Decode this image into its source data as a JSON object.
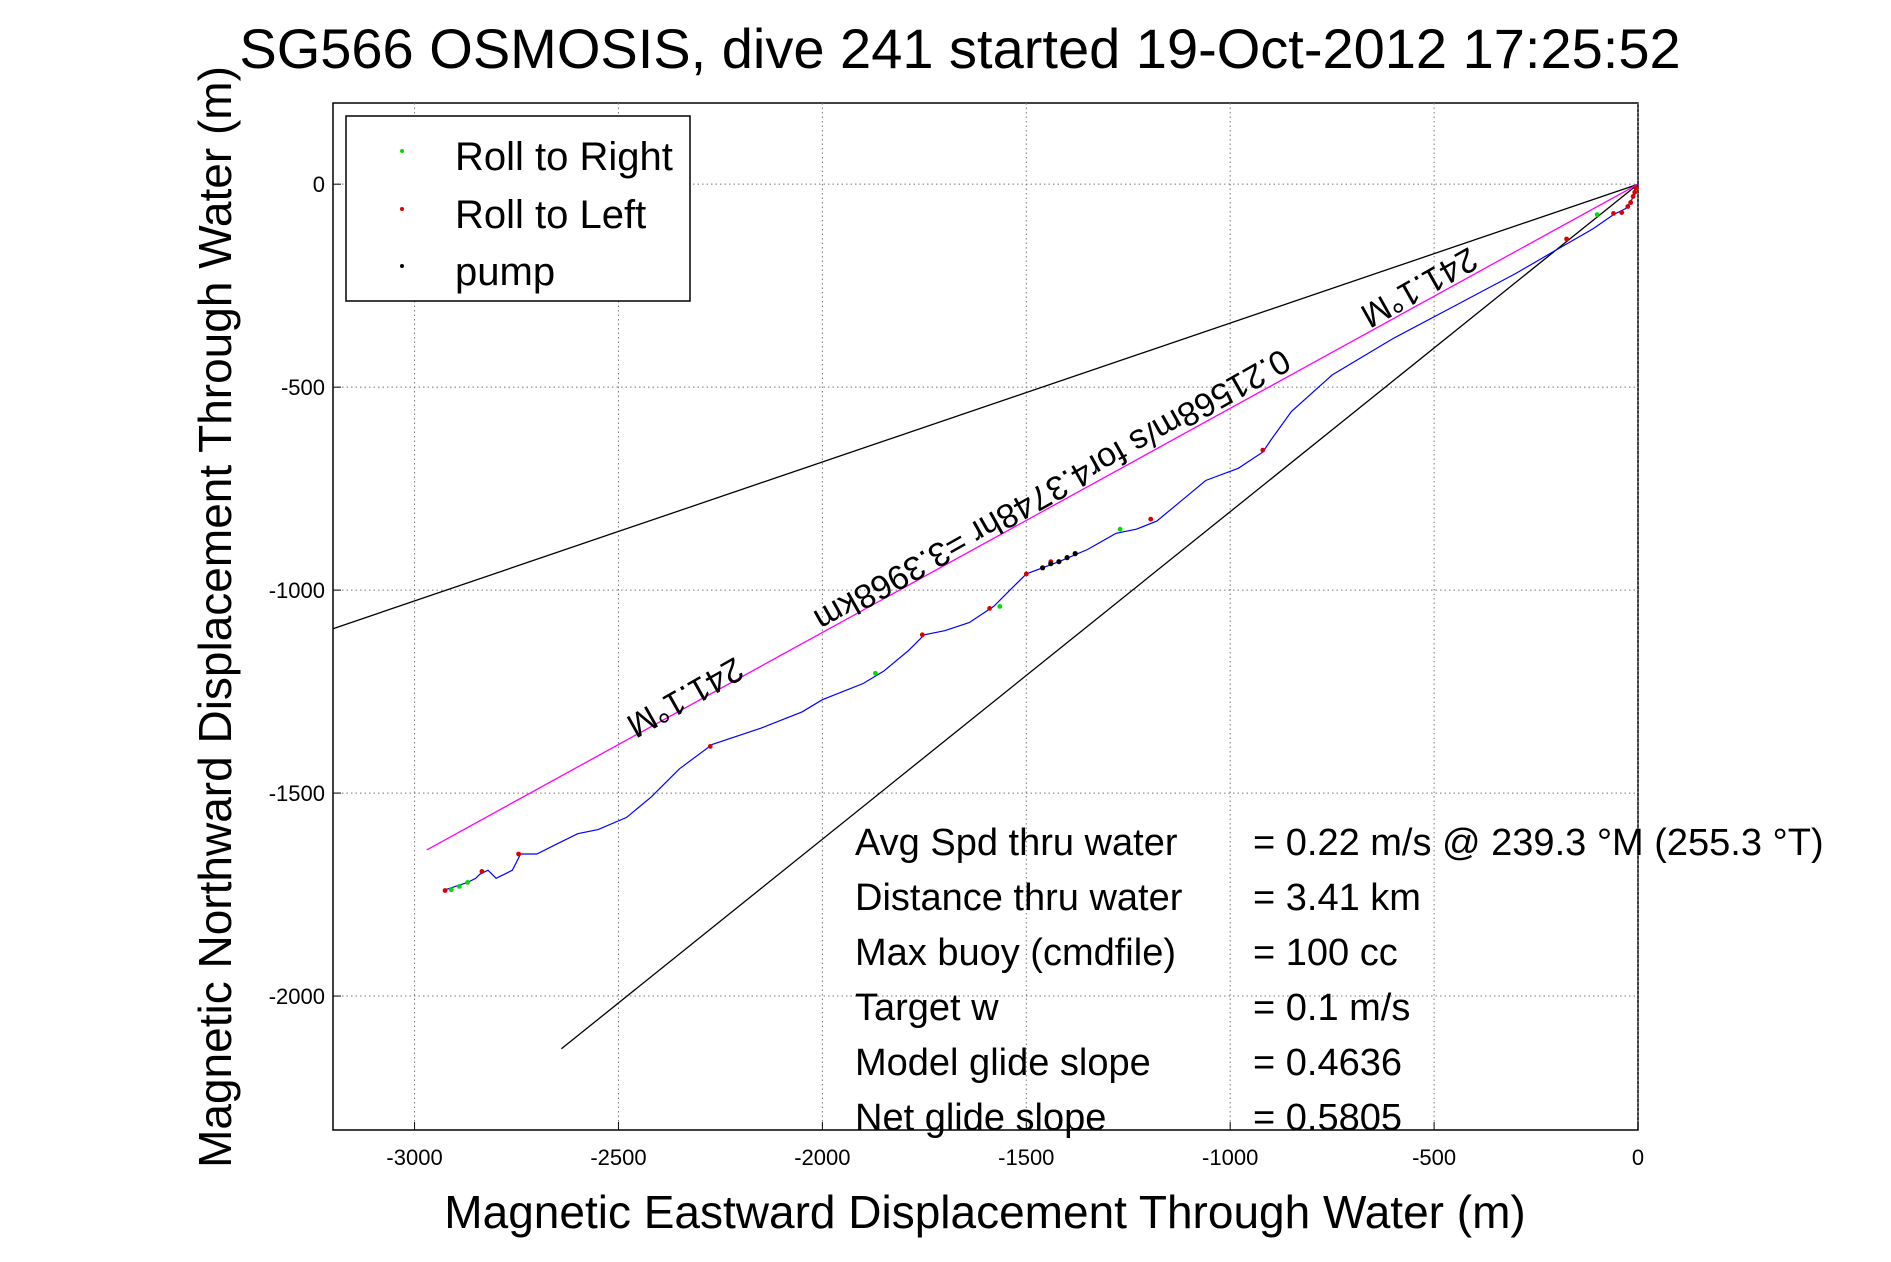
{
  "chart_data": {
    "type": "line",
    "title": "SG566 OSMOSIS, dive 241 started 19-Oct-2012 17:25:52",
    "xlabel": "Magnetic Eastward Displacement Through Water (m)",
    "ylabel": "Magnetic Northward Displacement Through Water (m)",
    "xlim": [
      -3200,
      0
    ],
    "ylim": [
      -2330,
      200
    ],
    "xticks": [
      -3000,
      -2500,
      -2000,
      -1500,
      -1000,
      -500,
      0
    ],
    "yticks": [
      0,
      -500,
      -1000,
      -1500,
      -2000
    ],
    "grid": true,
    "legend": {
      "position": "top-left",
      "entries": [
        {
          "label": "Roll to Right",
          "color": "#00dd00"
        },
        {
          "label": "Roll to Left",
          "color": "#dd0000"
        },
        {
          "label": "pump",
          "color": "#000000"
        }
      ]
    },
    "colors": {
      "track": "#0000ff",
      "heading_line": "#ff00ff",
      "cone_lines": "#000000",
      "roll_right": "#00dd00",
      "roll_left": "#dd0000",
      "pump": "#000000"
    },
    "cone_lines": [
      {
        "x": [
          0,
          -3200
        ],
        "y": [
          0,
          -1095
        ]
      },
      {
        "x": [
          0,
          -2640
        ],
        "y": [
          0,
          -2130
        ]
      }
    ],
    "heading_line": {
      "x": [
        0,
        -2970
      ],
      "y": [
        0,
        -1640
      ]
    },
    "track": {
      "x": [
        0,
        -10,
        -30,
        -60,
        -110,
        -180,
        -300,
        -450,
        -600,
        -750,
        -850,
        -900,
        -920,
        -980,
        -1060,
        -1120,
        -1180,
        -1230,
        -1280,
        -1350,
        -1420,
        -1500,
        -1540,
        -1580,
        -1640,
        -1700,
        -1750,
        -1790,
        -1850,
        -1900,
        -1950,
        -2000,
        -2050,
        -2150,
        -2270,
        -2350,
        -2420,
        -2480,
        -2550,
        -2600,
        -2660,
        -2700,
        -2740,
        -2760,
        -2780,
        -2800,
        -2820,
        -2840,
        -2850,
        -2870,
        -2900,
        -2930
      ],
      "y": [
        0,
        -30,
        -60,
        -75,
        -110,
        -150,
        -220,
        -300,
        -380,
        -470,
        -560,
        -630,
        -660,
        -700,
        -730,
        -780,
        -830,
        -850,
        -860,
        -900,
        -930,
        -960,
        -1000,
        -1040,
        -1080,
        -1100,
        -1110,
        -1150,
        -1200,
        -1230,
        -1250,
        -1270,
        -1300,
        -1340,
        -1380,
        -1440,
        -1510,
        -1560,
        -1590,
        -1600,
        -1630,
        -1650,
        -1650,
        -1690,
        -1700,
        -1710,
        -1690,
        -1700,
        -1710,
        -1720,
        -1730,
        -1740
      ]
    },
    "roll_right_points": {
      "x": [
        -100,
        -1270,
        -1565,
        -1870,
        -2870,
        -2890,
        -2910
      ],
      "y": [
        -75,
        -850,
        -1040,
        -1205,
        -1720,
        -1730,
        -1738
      ]
    },
    "roll_left_points": {
      "x": [
        -5,
        -8,
        -12,
        -18,
        -25,
        -40,
        -60,
        -175,
        -920,
        -1195,
        -1440,
        -1500,
        -1590,
        -1755,
        -2275,
        -2745,
        -2835,
        -2925
      ],
      "y": [
        -10,
        -20,
        -30,
        -45,
        -55,
        -70,
        -72,
        -135,
        -655,
        -825,
        -930,
        -960,
        -1045,
        -1110,
        -1385,
        -1650,
        -1693,
        -1740
      ]
    },
    "pump_points": {
      "x": [
        -1380,
        -1400,
        -1420,
        -1440,
        -1460
      ],
      "y": [
        -910,
        -920,
        -930,
        -935,
        -945
      ]
    },
    "annotations": [
      {
        "text": "241.1°M",
        "x": -2350,
        "y": -1240,
        "rotation": 150.6
      },
      {
        "text": "0.21568m/s for4.3748hr =3.3968km",
        "x": -1450,
        "y": -730,
        "rotation": 150.6
      },
      {
        "text": "241.1°M",
        "x": -550,
        "y": -230,
        "rotation": 150.6
      }
    ],
    "stats": [
      {
        "label": "Avg Spd thru water",
        "value": "=  0.22 m/s @ 239.3 °M (255.3 °T)"
      },
      {
        "label": "Distance thru water",
        "value": "=  3.41 km"
      },
      {
        "label": "Max buoy (cmdfile)",
        "value": "= 100 cc"
      },
      {
        "label": "Target w",
        "value": "= 0.1 m/s"
      },
      {
        "label": "Model glide slope",
        "value": "= 0.4636"
      },
      {
        "label": "Net glide slope",
        "value": "= 0.5805"
      }
    ]
  }
}
